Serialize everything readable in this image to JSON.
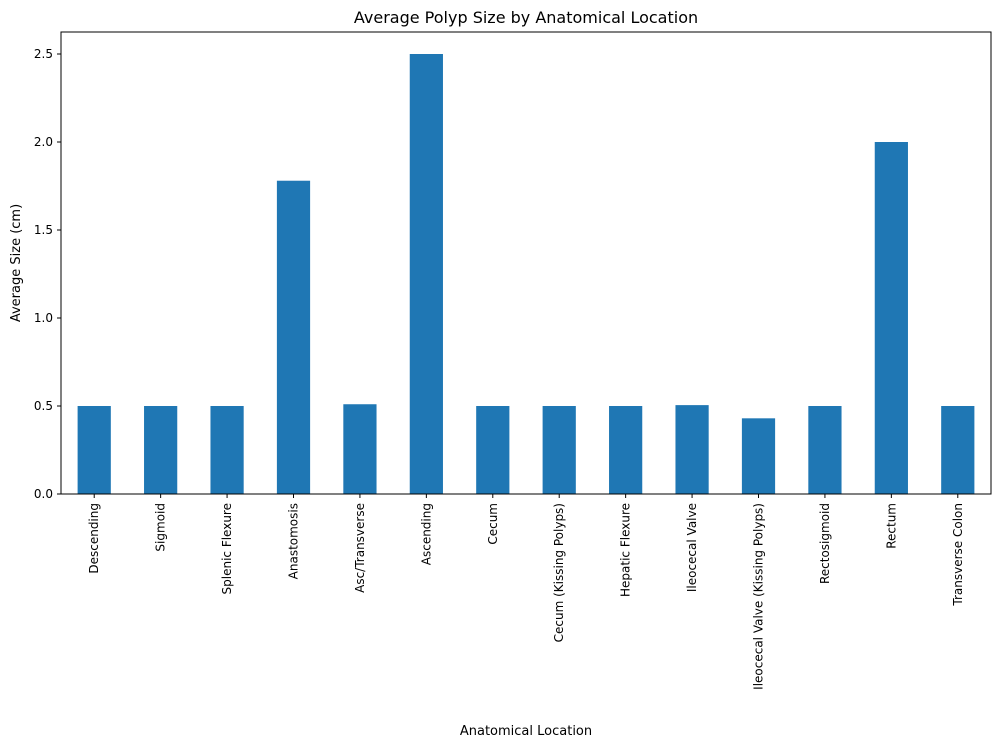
{
  "chart_data": {
    "type": "bar",
    "title": "Average Polyp Size by Anatomical Location",
    "xlabel": "Anatomical Location",
    "ylabel": "Average Size (cm)",
    "categories": [
      "Descending",
      "Sigmoid",
      "Splenic Flexure",
      "Anastomosis",
      "Asc/Transverse",
      "Ascending",
      "Cecum",
      "Cecum (Kissing Polyps)",
      "Hepatic Flexure",
      "Ileocecal Valve",
      "Ileocecal Valve (Kissing Polyps)",
      "Rectosigmoid",
      "Rectum",
      "Transverse Colon"
    ],
    "values": [
      0.5,
      0.5,
      0.5,
      1.78,
      0.51,
      2.5,
      0.5,
      0.5,
      0.5,
      0.505,
      0.43,
      0.5,
      2.0,
      0.5
    ],
    "ylim": [
      0,
      2.625
    ],
    "yticks": [
      0.0,
      0.5,
      1.0,
      1.5,
      2.0,
      2.5
    ],
    "ytick_labels": [
      "0.0",
      "0.5",
      "1.0",
      "1.5",
      "2.0",
      "2.5"
    ],
    "bar_color": "#1f77b4",
    "grid": false,
    "legend": "none"
  }
}
